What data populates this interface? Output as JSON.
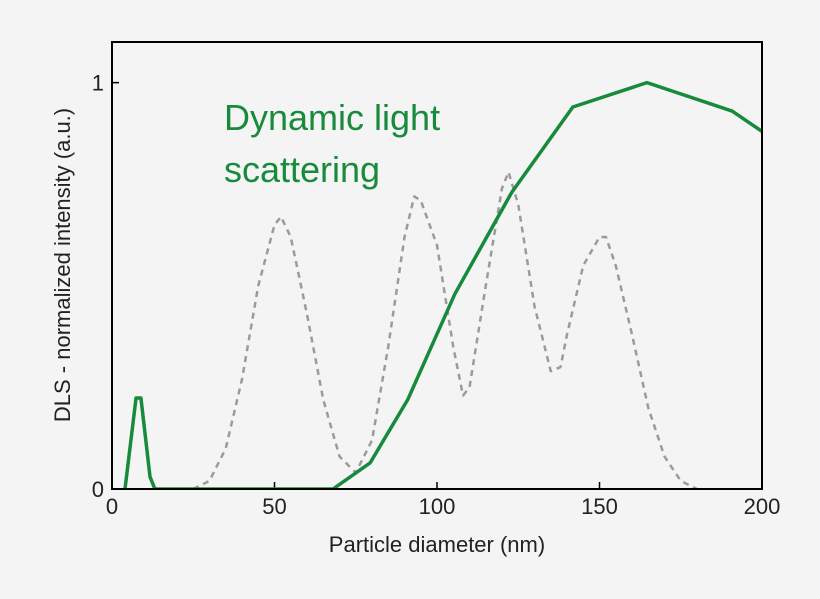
{
  "chart_data": {
    "type": "line",
    "xlabel": "Particle diameter (nm)",
    "ylabel": "DLS - normalized intensity (a.u.)",
    "xlim": [
      0,
      200
    ],
    "ylim": [
      0,
      1.1
    ],
    "xticks": [
      0,
      50,
      100,
      150,
      200
    ],
    "yticks": [
      0,
      1
    ],
    "series": [
      {
        "color": "#9b9b9b",
        "dashed": true,
        "x": [
          25,
          30,
          35,
          40,
          45,
          50,
          52,
          55,
          60,
          65,
          70,
          75,
          80,
          85,
          90,
          93,
          95,
          100,
          105,
          108,
          110,
          115,
          120,
          122,
          125,
          130,
          135,
          138,
          140,
          145,
          150,
          152,
          155,
          160,
          165,
          170,
          175,
          180
        ],
        "values": [
          0,
          0.02,
          0.1,
          0.27,
          0.5,
          0.65,
          0.67,
          0.62,
          0.43,
          0.22,
          0.08,
          0.04,
          0.12,
          0.35,
          0.62,
          0.72,
          0.71,
          0.6,
          0.35,
          0.23,
          0.25,
          0.5,
          0.74,
          0.78,
          0.7,
          0.45,
          0.29,
          0.3,
          0.38,
          0.55,
          0.62,
          0.62,
          0.55,
          0.38,
          0.2,
          0.08,
          0.02,
          0
        ]
      },
      {
        "name": "Dynamic light scattering",
        "color": "#178a3c",
        "dashed": false,
        "x": [
          4,
          7.4,
          8.9,
          11.7,
          13.2,
          68,
          79.4,
          91,
          105.5,
          123,
          141.8,
          164.6,
          190.8,
          200
        ],
        "values": [
          0,
          0.224,
          0.224,
          0.03,
          0,
          0,
          0.064,
          0.22,
          0.48,
          0.73,
          0.94,
          1.0,
          0.93,
          0.88
        ]
      }
    ]
  }
}
